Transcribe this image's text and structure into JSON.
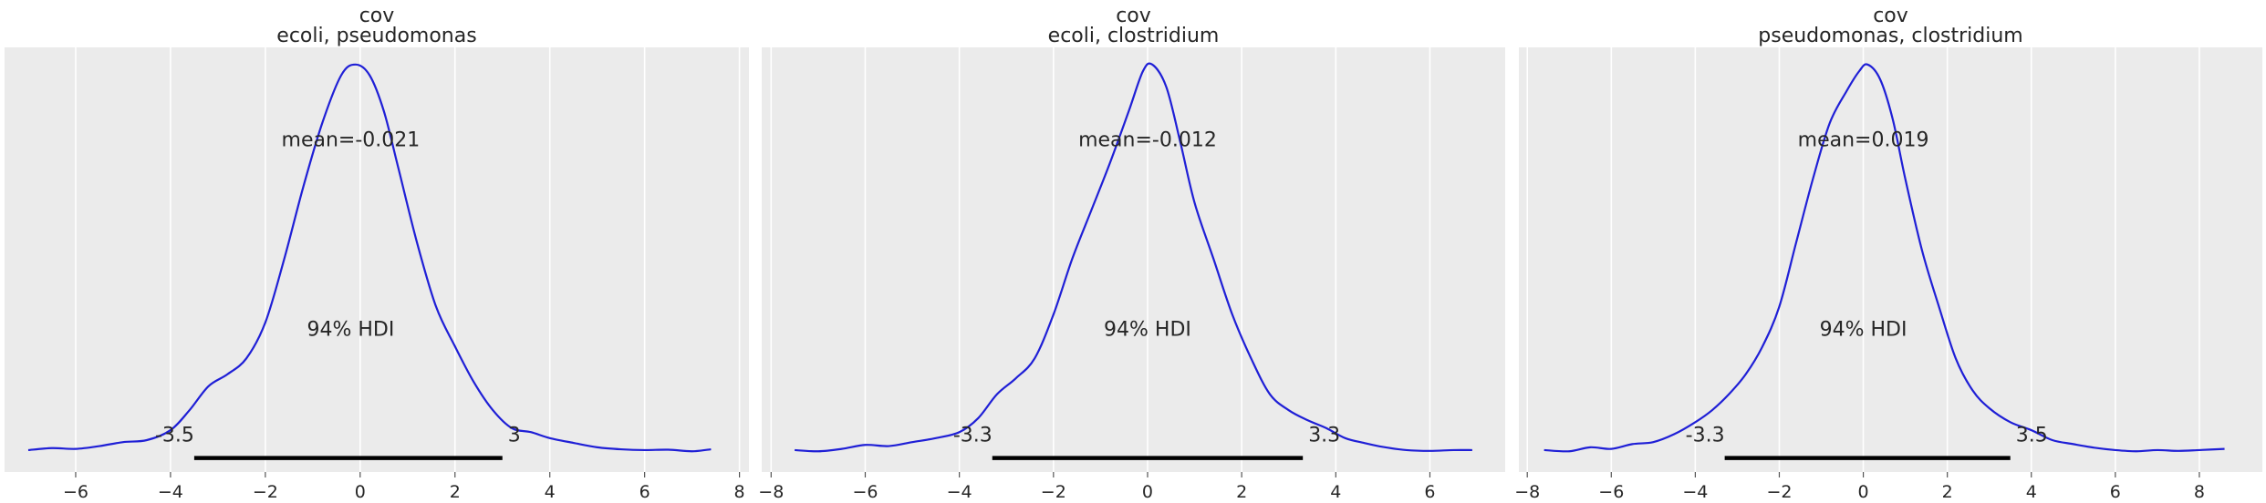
{
  "chart_data": [
    {
      "type": "line",
      "title": "cov",
      "subtitle": "ecoli, pseudomonas",
      "xlim": [
        -7.5,
        8.2
      ],
      "ylim": [
        -0.0055,
        0.101
      ],
      "xticks": [
        -6,
        -4,
        -2,
        0,
        2,
        4,
        6,
        8
      ],
      "xtick_labels": [
        "−6",
        "−4",
        "−2",
        "0",
        "2",
        "4",
        "6",
        "8"
      ],
      "color": "#1f1fd6",
      "density": {
        "x": [
          -7.0,
          -6.5,
          -6.0,
          -5.5,
          -5.0,
          -4.5,
          -4.0,
          -3.6,
          -3.2,
          -2.8,
          -2.4,
          -2.0,
          -1.6,
          -1.2,
          -0.8,
          -0.4,
          -0.1,
          0.2,
          0.5,
          0.8,
          1.2,
          1.6,
          2.0,
          2.4,
          2.8,
          3.2,
          3.6,
          4.0,
          4.5,
          5.0,
          5.5,
          6.0,
          6.5,
          7.0,
          7.4
        ],
        "y": [
          0.0,
          0.0005,
          0.0003,
          0.001,
          0.002,
          0.0025,
          0.005,
          0.01,
          0.016,
          0.019,
          0.023,
          0.032,
          0.048,
          0.066,
          0.082,
          0.094,
          0.0967,
          0.094,
          0.085,
          0.071,
          0.052,
          0.036,
          0.026,
          0.017,
          0.01,
          0.0055,
          0.0045,
          0.003,
          0.0018,
          0.0007,
          0.0002,
          0.0,
          0.0001,
          -0.0003,
          0.0002
        ]
      },
      "mean_label": "mean=-0.021",
      "mean_label_pos": [
        -0.2,
        0.078
      ],
      "hdi_label": "94% HDI",
      "hdi_label_pos": [
        -0.2,
        0.0305
      ],
      "hdi": [
        -3.5,
        3.0
      ],
      "hdi_low_label": "-3.5",
      "hdi_high_label": "3",
      "hdi_level": -0.002,
      "hdi_text_level": 0.004
    },
    {
      "type": "line",
      "title": "cov",
      "subtitle": "ecoli, clostridium",
      "xlim": [
        -8.2,
        7.6
      ],
      "ylim": [
        -0.0055,
        0.101
      ],
      "xticks": [
        -8,
        -6,
        -4,
        -2,
        0,
        2,
        4,
        6
      ],
      "xtick_labels": [
        "−8",
        "−6",
        "−4",
        "−2",
        "0",
        "2",
        "4",
        "6"
      ],
      "color": "#1f1fd6",
      "density": {
        "x": [
          -7.5,
          -7.0,
          -6.5,
          -6.0,
          -5.5,
          -5.0,
          -4.5,
          -4.0,
          -3.6,
          -3.2,
          -2.8,
          -2.4,
          -2.0,
          -1.6,
          -1.2,
          -0.8,
          -0.4,
          -0.1,
          0.1,
          0.4,
          0.7,
          1.0,
          1.4,
          1.8,
          2.2,
          2.6,
          3.0,
          3.4,
          3.8,
          4.2,
          4.6,
          5.0,
          5.5,
          6.0,
          6.5,
          6.9
        ],
        "y": [
          0.0,
          -0.0003,
          0.0003,
          0.0013,
          0.001,
          0.002,
          0.003,
          0.0045,
          0.008,
          0.014,
          0.018,
          0.023,
          0.034,
          0.048,
          0.06,
          0.072,
          0.085,
          0.095,
          0.0967,
          0.091,
          0.077,
          0.062,
          0.048,
          0.034,
          0.023,
          0.014,
          0.01,
          0.0075,
          0.0055,
          0.003,
          0.0018,
          0.0008,
          0.0,
          -0.0002,
          0.0,
          0.0
        ]
      },
      "mean_label": "mean=-0.012",
      "mean_label_pos": [
        0.0,
        0.078
      ],
      "hdi_label": "94% HDI",
      "hdi_label_pos": [
        0.0,
        0.0305
      ],
      "hdi": [
        -3.3,
        3.3
      ],
      "hdi_low_label": "-3.3",
      "hdi_high_label": "3.3",
      "hdi_level": -0.002,
      "hdi_text_level": 0.004
    },
    {
      "type": "line",
      "title": "cov",
      "subtitle": "pseudomonas, clostridium",
      "xlim": [
        -8.2,
        9.5
      ],
      "ylim": [
        -0.0055,
        0.101
      ],
      "xticks": [
        -8,
        -6,
        -4,
        -2,
        0,
        2,
        4,
        6,
        8
      ],
      "xtick_labels": [
        "−8",
        "−6",
        "−4",
        "−2",
        "0",
        "2",
        "4",
        "6",
        "8"
      ],
      "color": "#1f1fd6",
      "density": {
        "x": [
          -7.6,
          -7.0,
          -6.5,
          -6.0,
          -5.5,
          -5.0,
          -4.5,
          -4.0,
          -3.6,
          -3.2,
          -2.8,
          -2.4,
          -2.0,
          -1.6,
          -1.2,
          -0.8,
          -0.4,
          -0.1,
          0.1,
          0.4,
          0.7,
          1.0,
          1.4,
          1.8,
          2.2,
          2.6,
          3.0,
          3.5,
          4.0,
          4.5,
          5.0,
          5.5,
          6.0,
          6.5,
          7.0,
          7.5,
          8.0,
          8.6
        ],
        "y": [
          0.0,
          -0.0003,
          0.0007,
          0.0003,
          0.0015,
          0.002,
          0.004,
          0.007,
          0.01,
          0.014,
          0.019,
          0.026,
          0.036,
          0.052,
          0.068,
          0.082,
          0.09,
          0.095,
          0.0967,
          0.093,
          0.083,
          0.068,
          0.05,
          0.036,
          0.023,
          0.015,
          0.0105,
          0.007,
          0.005,
          0.0025,
          0.0015,
          0.0006,
          0.0,
          -0.0003,
          0.0,
          -0.0002,
          0.0,
          0.0003
        ]
      },
      "mean_label": "mean=0.019",
      "mean_label_pos": [
        0.0,
        0.078
      ],
      "hdi_label": "94% HDI",
      "hdi_label_pos": [
        0.0,
        0.0305
      ],
      "hdi": [
        -3.3,
        3.5
      ],
      "hdi_low_label": "-3.3",
      "hdi_high_label": "3.5",
      "hdi_level": -0.002,
      "hdi_text_level": 0.004
    }
  ]
}
